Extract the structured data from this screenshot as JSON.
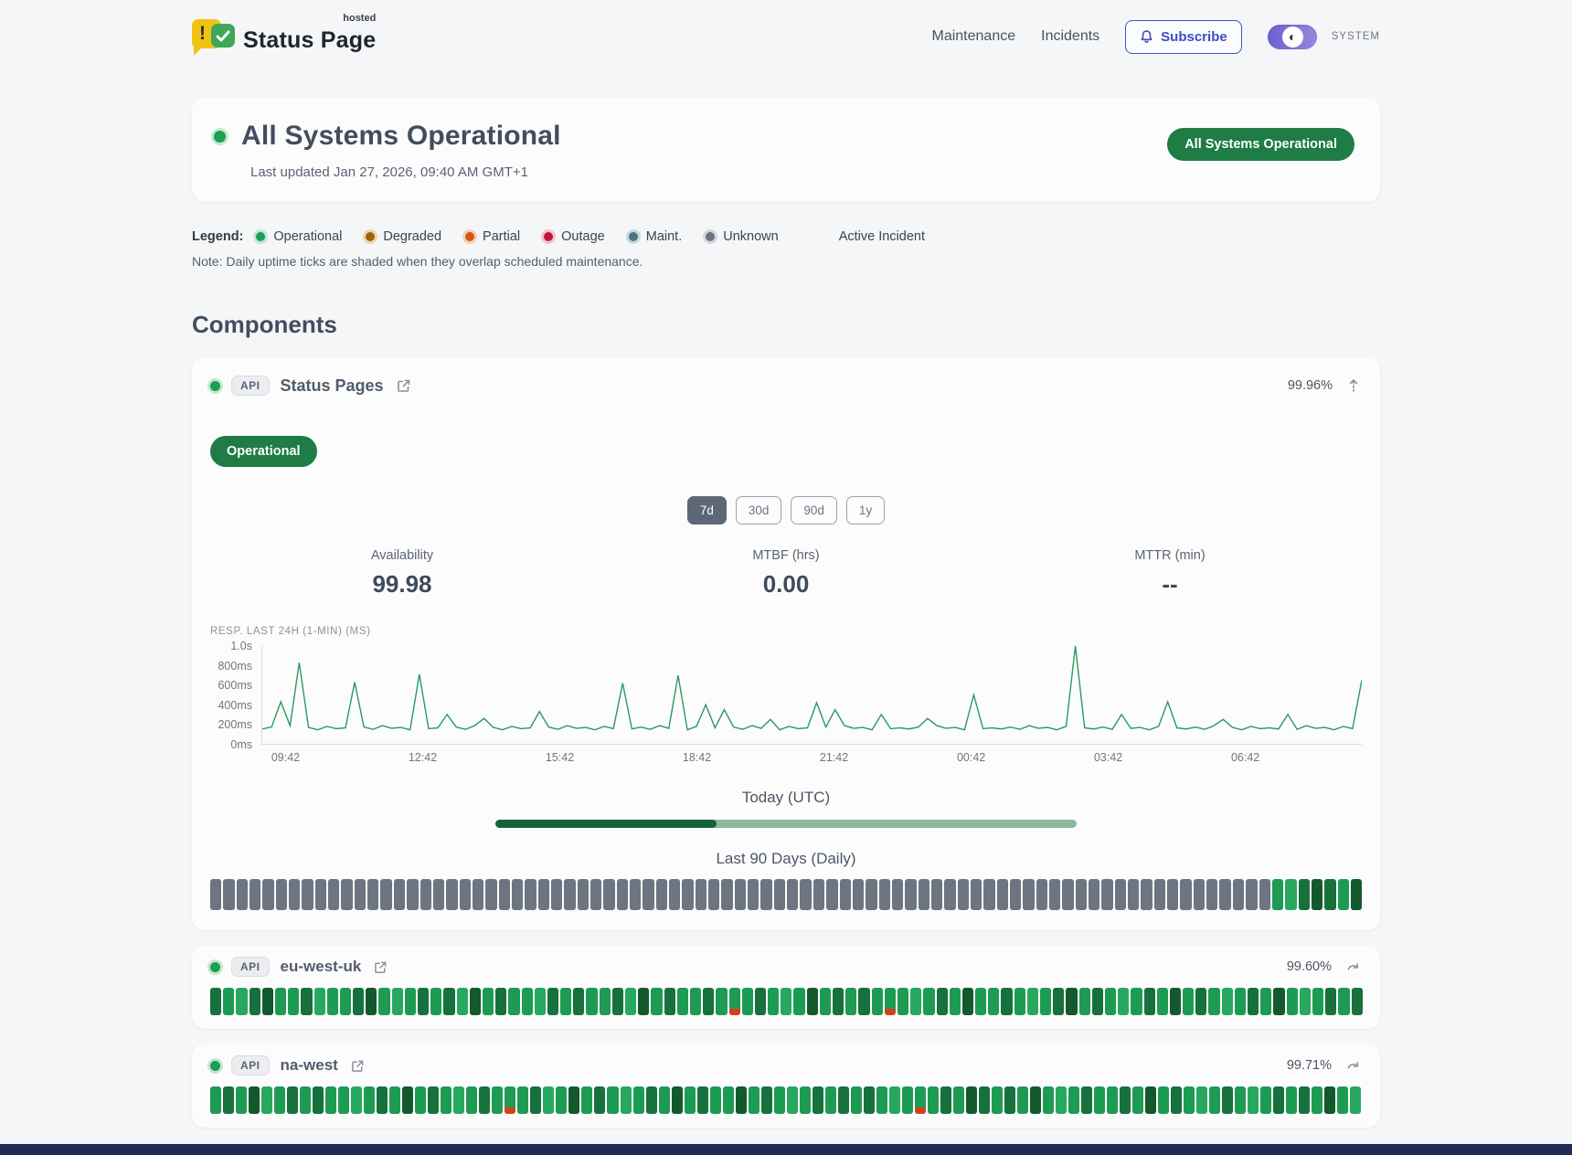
{
  "page": {
    "background": "#f5f6f8",
    "footer_color": "#202c56",
    "accent_green": "#1e7c44",
    "accent_indigo": "#4350c5"
  },
  "header": {
    "brand": {
      "name": "Status Page",
      "superscript": "hosted"
    },
    "nav": [
      {
        "label": "Maintenance"
      },
      {
        "label": "Incidents"
      }
    ],
    "subscribe_label": "Subscribe",
    "theme_toggle_label": "SYSTEM"
  },
  "hero": {
    "title": "All Systems Operational",
    "last_updated": "Last updated Jan 27, 2026, 09:40 AM GMT+1",
    "badge": "All Systems Operational"
  },
  "legend": {
    "label": "Legend:",
    "items": [
      {
        "label": "Operational",
        "color": "#1d9e55",
        "ring": "#c5e7d1"
      },
      {
        "label": "Degraded",
        "color": "#a16207",
        "ring": "#e8d9b0"
      },
      {
        "label": "Partial",
        "color": "#d4560e",
        "ring": "#f3d0ba"
      },
      {
        "label": "Outage",
        "color": "#c01540",
        "ring": "#f0c4cf"
      },
      {
        "label": "Maint.",
        "color": "#4f7083",
        "ring": "#c7d8e0"
      },
      {
        "label": "Unknown",
        "color": "#6b7280",
        "ring": "#d4d7dc"
      }
    ],
    "active_incident_label": "Active Incident",
    "note": "Note: Daily uptime ticks are shaded when they overlap scheduled maintenance."
  },
  "components": {
    "heading": "Components",
    "tick_palette": {
      "g": "#6d7582",
      "m": "#1e9b53",
      "l": "#28a85e",
      "d": "#17713c",
      "D": "#14592e",
      "r": "linear-gradient(#1e9b53 76%, #d2401f 76%)"
    },
    "progress": {
      "filled": "#15613a",
      "track": "#8fb89d",
      "value": 0.38
    },
    "expanded": {
      "tag": "API",
      "name": "Status Pages",
      "uptime": "99.96%",
      "status_badge": "Operational",
      "ranges": [
        "7d",
        "30d",
        "90d",
        "1y"
      ],
      "active_range": "7d",
      "stats": [
        {
          "label": "Availability",
          "value": "99.98"
        },
        {
          "label": "MTBF (hrs)",
          "value": "0.00"
        },
        {
          "label": "MTTR (min)",
          "value": "--"
        }
      ],
      "chart_label": "RESP. LAST 24H (1-MIN) (MS)",
      "today_label": "Today (UTC)",
      "history_label": "Last 90 Days (Daily)",
      "daily_ticks": "gggggggggggggggggggggggggggggggggggggggggggggggggggggggggggggggggggggggggggggggggmldDdmD"
    },
    "rows": [
      {
        "tag": "API",
        "name": "eu-west-uk",
        "uptime": "99.60%",
        "daily_ticks": "dmldDmmdlmmdDmlmdmdlDmdmmldmdmmdlDmdmmdmrmdmlmDmdmdmrmlmdmDmmdmlmdDmdmlmdmDmdmlmdmDmlmdmd"
      },
      {
        "tag": "API",
        "name": "na-west",
        "uptime": "99.71%",
        "daily_ticks": "mdmDlmdmdmmlmdmDmdmlmdmrmdlmDmdmlmdmDmdmmDmdmlmdmdmdmlmrmdmDdmdmDmlmdmmdmDmdmlmdmlmdmdmDml"
      }
    ]
  },
  "chart_data": {
    "type": "line",
    "title": "RESP. LAST 24H (1-MIN) (MS)",
    "x_tick_labels": [
      "09:42",
      "12:42",
      "15:42",
      "18:42",
      "21:42",
      "00:42",
      "03:42",
      "06:42"
    ],
    "y_tick_labels": [
      "1.0s",
      "800ms",
      "600ms",
      "400ms",
      "200ms",
      "0ms"
    ],
    "ylim": [
      0,
      1000
    ],
    "unit": "ms",
    "line_color": "#2a9960",
    "grid": false,
    "values": [
      152,
      171,
      430,
      186,
      830,
      168,
      143,
      178,
      155,
      163,
      630,
      171,
      148,
      186,
      158,
      168,
      143,
      710,
      155,
      163,
      300,
      171,
      148,
      186,
      260,
      168,
      143,
      178,
      155,
      163,
      330,
      171,
      148,
      186,
      158,
      168,
      143,
      178,
      155,
      620,
      152,
      171,
      148,
      186,
      158,
      700,
      143,
      178,
      400,
      163,
      350,
      171,
      148,
      186,
      158,
      250,
      143,
      178,
      155,
      163,
      420,
      171,
      350,
      186,
      158,
      168,
      143,
      300,
      155,
      163,
      152,
      171,
      260,
      186,
      158,
      168,
      143,
      500,
      155,
      163,
      152,
      171,
      148,
      186,
      158,
      168,
      143,
      178,
      1000,
      163,
      152,
      171,
      148,
      300,
      158,
      168,
      143,
      178,
      430,
      163,
      152,
      171,
      148,
      186,
      250,
      168,
      143,
      178,
      155,
      163,
      152,
      300,
      148,
      186,
      158,
      168,
      143,
      178,
      155,
      650
    ]
  }
}
